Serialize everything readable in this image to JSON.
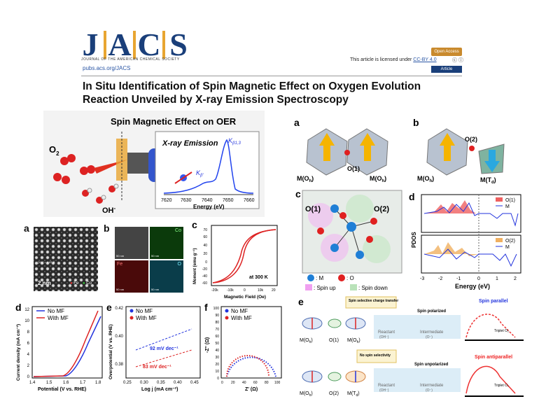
{
  "header": {
    "logo_letters": [
      "J",
      "A",
      "C",
      "S"
    ],
    "journal_name": "JOURNAL OF THE AMERICAN CHEMICAL SOCIETY",
    "site": "pubs.acs.org/JACS",
    "open_access": "Open Access",
    "license_text": "This article is licensed under",
    "license_link": "CC-BY 4.0",
    "cc_icons": "ⓒ ⓘ",
    "article_label": "Article"
  },
  "title": "In Situ Identification of Spin Magnetic Effect on Oxygen Evolution Reaction Unveiled by X-ray Emission Spectroscopy",
  "toc": {
    "title": "Spin Magnetic Effect on OER",
    "o2": "O",
    "o2_sub": "2",
    "oh": "OH",
    "oh_sup": "-",
    "xes_title": "X-ray Emission",
    "kb13": "K",
    "kb13_sub": "β1,3",
    "kb_prime": "K",
    "kb_prime_sub": "β'",
    "xlabel": "Energy (eV)",
    "xticks": [
      "7620",
      "7630",
      "7640",
      "7650",
      "7660"
    ]
  },
  "fig1": {
    "a": {
      "label": "a",
      "scale": "2 nm",
      "legend": [
        "Fe",
        "Co"
      ],
      "measure": "[111] = 4.87 Å"
    },
    "b": {
      "label": "b",
      "elements": [
        "Co",
        "Fe",
        "O"
      ],
      "scalebars": [
        "50 nm",
        "50 nm",
        "50 nm",
        "50 nm"
      ]
    },
    "c": {
      "label": "c",
      "ylabel": "Moment (emu g⁻¹)",
      "xlabel": "Magnetic Field (Oe)",
      "note": "at 300 K",
      "yticks": [
        "70",
        "60",
        "40",
        "20",
        "0",
        "-20",
        "-40",
        "-60"
      ],
      "xticks": [
        "-20k",
        "-10k",
        "0",
        "10k",
        "20"
      ]
    },
    "d": {
      "label": "d",
      "legend": [
        "No MF",
        "With MF"
      ],
      "ylabel": "Current density (mA cm⁻²)",
      "xlabel": "Potential (V vs. RHE)",
      "yticks": [
        "12",
        "10",
        "8",
        "6",
        "4",
        "2",
        "0"
      ],
      "xticks": [
        "1.4",
        "1.5",
        "1.6",
        "1.7",
        "1.8"
      ]
    },
    "e": {
      "label": "e",
      "legend": [
        "No MF",
        "With MF"
      ],
      "ylabel": "Overpotential (V vs. RHE)",
      "xlabel": "Log j (mA cm⁻²)",
      "slope1": "92 mV dec⁻¹",
      "slope2": "83 mV dec⁻¹",
      "yticks": [
        "0.42",
        "0.40",
        "0.38"
      ],
      "xticks": [
        "0.25",
        "0.30",
        "0.35",
        "0.40",
        "0.45"
      ]
    },
    "f": {
      "label": "f",
      "legend": [
        "No MF",
        "With MF"
      ],
      "ylabel": "-Z'' (Ω)",
      "xlabel": "Z' (Ω)",
      "yticks": [
        "100",
        "90",
        "80",
        "70",
        "60",
        "50",
        "40",
        "30",
        "20",
        "10",
        "0"
      ],
      "xticks": [
        "0",
        "20",
        "40",
        "60",
        "80",
        "100"
      ]
    }
  },
  "fig2": {
    "a": {
      "label": "a",
      "sites": [
        "M(O",
        "O(1)",
        "M(O"
      ],
      "sub": "h",
      "close": ")"
    },
    "b": {
      "label": "b",
      "sites": [
        "M(O",
        "O(2)",
        "M(T"
      ],
      "subs": [
        "h",
        "d"
      ],
      "close": ")"
    },
    "c": {
      "label": "c",
      "tags": [
        "O(1)",
        "O(2)"
      ],
      "legend_m": ": M",
      "legend_o": ": O",
      "legend_up": ": Spin up",
      "legend_down": ": Spin down"
    },
    "d": {
      "label": "d",
      "ylabel": "PDOS",
      "xlabel": "Energy (eV)",
      "top_legend": [
        "O(1)",
        "M"
      ],
      "bot_legend": [
        "O(2)",
        "M"
      ],
      "xticks": [
        "-3",
        "-2",
        "-1",
        "0",
        "1",
        "2"
      ]
    },
    "e": {
      "label": "e",
      "top_box": "Spin selective charge transfer",
      "bot_box": "No spin selectivity",
      "top_state": "Spin polarized",
      "bot_state": "Spin unpolarized",
      "reactant": "Reactant",
      "reactant_sub": "(OH⁻)",
      "intermediate": "Intermediate",
      "intermediate_sub": "(O⁻)",
      "parallel": "Spin parallel",
      "antiparallel": "Spin antiparallel",
      "triplet": "Triplet O₂",
      "top_sites": [
        "M(O",
        "O(1)",
        "M(O"
      ],
      "bot_sites": [
        "M(O",
        "O(2)",
        "M(T"
      ],
      "subs_top": [
        "h",
        "h"
      ],
      "subs_bot": [
        "h",
        "d"
      ],
      "close": ")"
    }
  },
  "colors": {
    "accent": "#1a3f7a",
    "gold": "#e8a531",
    "blue": "#2233dd",
    "red": "#dd2222"
  }
}
